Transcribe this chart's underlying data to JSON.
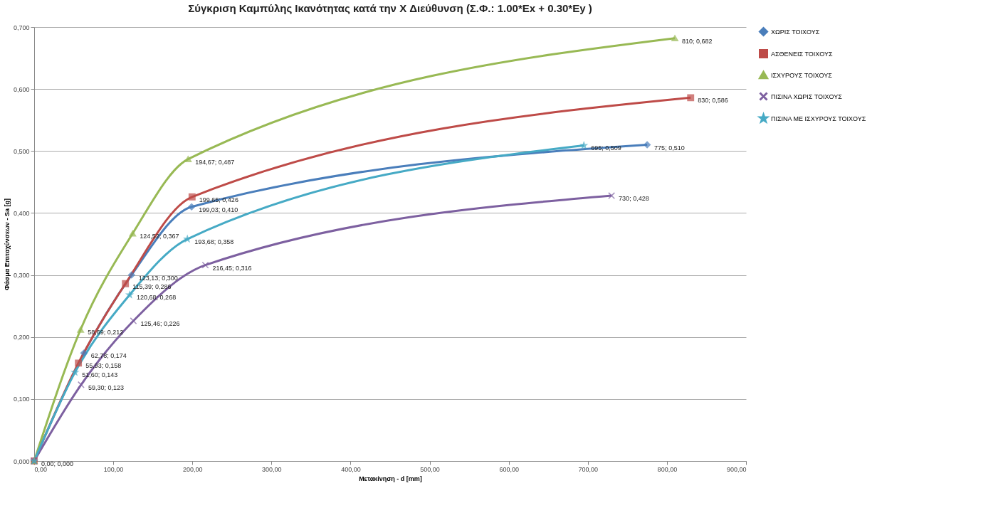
{
  "chart_data": {
    "type": "line",
    "title": "Σύγκριση Καμπύλης Ικανότητας κατά την  X  Διεύθυνση (Σ.Φ.: 1.00*Ex + 0.30*Ey )",
    "xlabel": "Μετακίνηση - d [mm]",
    "ylabel": "Φάσμα Επιταχύνσεων - Sa [g]",
    "xlim": [
      0,
      900
    ],
    "ylim": [
      0,
      0.7
    ],
    "xticks": [
      {
        "value": 0,
        "label": "0,00"
      },
      {
        "value": 100,
        "label": "100,00"
      },
      {
        "value": 200,
        "label": "200,00"
      },
      {
        "value": 300,
        "label": "300,00"
      },
      {
        "value": 400,
        "label": "400,00"
      },
      {
        "value": 500,
        "label": "500,00"
      },
      {
        "value": 600,
        "label": "600,00"
      },
      {
        "value": 700,
        "label": "700,00"
      },
      {
        "value": 800,
        "label": "800,00"
      },
      {
        "value": 900,
        "label": "900,00"
      }
    ],
    "yticks": [
      {
        "value": 0,
        "label": "0,000"
      },
      {
        "value": 0.1,
        "label": "0,100"
      },
      {
        "value": 0.2,
        "label": "0,200"
      },
      {
        "value": 0.3,
        "label": "0,300"
      },
      {
        "value": 0.4,
        "label": "0,400"
      },
      {
        "value": 0.5,
        "label": "0,500"
      },
      {
        "value": 0.6,
        "label": "0,600"
      },
      {
        "value": 0.7,
        "label": "0,700"
      }
    ],
    "grid": "y",
    "legend": "right",
    "line_style": "solid",
    "series": [
      {
        "name": "ΧΩΡΙΣ ΤΟΙΧΟΥΣ",
        "color": "#4a7ebb",
        "marker": "diamond",
        "x": [
          0,
          62.78,
          123.13,
          199.03,
          775
        ],
        "values": [
          0,
          0.174,
          0.3,
          0.41,
          0.51
        ],
        "value_labels": [
          "0,00; 0,000",
          "62,78; 0,174",
          "123,13; 0,300",
          "199,03; 0,410",
          "775; 0,510"
        ]
      },
      {
        "name": "ΑΣΘΕΝΕΙΣ  ΤΟΙΧΟΥΣ",
        "color": "#be4b48",
        "marker": "square",
        "x": [
          0,
          55.93,
          115.39,
          199.65,
          830
        ],
        "values": [
          0,
          0.158,
          0.286,
          0.426,
          0.586
        ],
        "value_labels": [
          null,
          "55,93; 0,158",
          "115,39; 0,286",
          "199,65; 0,426",
          "830; 0,586"
        ]
      },
      {
        "name": "ΙΣΧΥΡΟΥΣ ΤΟΙΧΟΥΣ",
        "color": "#98b954",
        "marker": "triangle",
        "x": [
          0,
          58.69,
          124.52,
          194.67,
          810
        ],
        "values": [
          0,
          0.212,
          0.367,
          0.487,
          0.682
        ],
        "value_labels": [
          null,
          "58,69; 0,212",
          "124,52; 0,367",
          "194,67; 0,487",
          "810; 0,682"
        ]
      },
      {
        "name": "ΠΙΣΙΝΑ ΧΩΡΙΣ ΤΟΙΧΟΥΣ",
        "color": "#7d60a0",
        "marker": "cross",
        "x": [
          0,
          59.3,
          125.46,
          216.45,
          730
        ],
        "values": [
          0,
          0.123,
          0.226,
          0.316,
          0.428
        ],
        "value_labels": [
          null,
          "59,30; 0,123",
          "125,46; 0,226",
          "216,45; 0,316",
          "730; 0,428"
        ]
      },
      {
        "name": "ΠΙΣΙΝΑ ΜΕ ΙΣΧΥΡΟΥΣ ΤΟΙΧΟΥΣ",
        "color": "#46aac5",
        "marker": "star",
        "x": [
          0,
          51.6,
          120.68,
          193.68,
          695
        ],
        "values": [
          0,
          0.143,
          0.268,
          0.358,
          0.509
        ],
        "value_labels": [
          null,
          "51,60; 0,143",
          "120,68; 0,268",
          "193,68; 0,358",
          "695; 0,509"
        ]
      }
    ]
  }
}
